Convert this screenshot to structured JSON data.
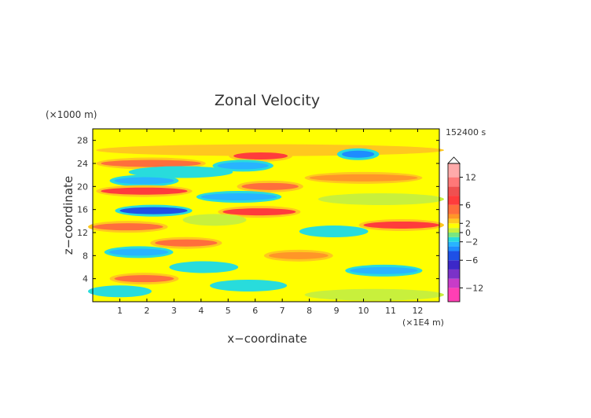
{
  "chart_data": {
    "type": "heatmap",
    "title": "Zonal Velocity",
    "xlabel": "x−coordinate",
    "ylabel": "z−coordinate",
    "x_unit": "(×1E4 m)",
    "y_unit": "(×1000 m)",
    "time_label": "152400 s",
    "xlim": [
      0,
      12.8
    ],
    "ylim": [
      0,
      30
    ],
    "x_ticks": [
      1,
      2,
      3,
      4,
      5,
      6,
      7,
      8,
      9,
      10,
      11,
      12
    ],
    "y_ticks": [
      4,
      8,
      12,
      16,
      20,
      24,
      28
    ],
    "colorbar": {
      "ticks": [
        12,
        6,
        2,
        0,
        -2,
        -6,
        -12
      ],
      "tick_labels": [
        "12",
        "6",
        "2",
        "0",
        "−2",
        "−6",
        "−12"
      ],
      "range": [
        -15,
        15
      ],
      "levels": [
        {
          "min": -15,
          "max": -12,
          "color": "#ff3fb4"
        },
        {
          "min": -12,
          "max": -10,
          "color": "#c83cc8"
        },
        {
          "min": -10,
          "max": -8,
          "color": "#7a32c8"
        },
        {
          "min": -8,
          "max": -6,
          "color": "#3c28c8"
        },
        {
          "min": -6,
          "max": -4,
          "color": "#1e50e6"
        },
        {
          "min": -4,
          "max": -3,
          "color": "#1e8cff"
        },
        {
          "min": -3,
          "max": -2,
          "color": "#28b4ff"
        },
        {
          "min": -2,
          "max": -1,
          "color": "#28dcdc"
        },
        {
          "min": -1,
          "max": 0,
          "color": "#78e682"
        },
        {
          "min": 0,
          "max": 1,
          "color": "#c8f03c"
        },
        {
          "min": 1,
          "max": 2,
          "color": "#ffff00"
        },
        {
          "min": 2,
          "max": 3,
          "color": "#ffc81e"
        },
        {
          "min": 3,
          "max": 4,
          "color": "#ff9628"
        },
        {
          "min": 4,
          "max": 6,
          "color": "#ff6e3c"
        },
        {
          "min": 6,
          "max": 8,
          "color": "#ff3c3c"
        },
        {
          "min": 8,
          "max": 10,
          "color": "#f05050"
        },
        {
          "min": 10,
          "max": 12,
          "color": "#ff7878"
        },
        {
          "min": 12,
          "max": 15,
          "color": "#ffaaaa"
        }
      ],
      "extend_top": true
    },
    "bands": [
      {
        "z": 26.3,
        "x0": 0.3,
        "x1": 12.8,
        "u": 2.5
      },
      {
        "z": 25.3,
        "x0": 5.2,
        "x1": 7.2,
        "u": 6.5
      },
      {
        "z": 25.6,
        "x0": 9.2,
        "x1": 10.4,
        "u": -3.5
      },
      {
        "z": 24.0,
        "x0": 0.3,
        "x1": 4.0,
        "u": 4.5
      },
      {
        "z": 23.6,
        "x0": 4.6,
        "x1": 6.5,
        "u": -2.5
      },
      {
        "z": 22.5,
        "x0": 1.5,
        "x1": 5.0,
        "u": -1.5
      },
      {
        "z": 21.5,
        "x0": 8.0,
        "x1": 12.0,
        "u": 3.5
      },
      {
        "z": 21.0,
        "x0": 0.8,
        "x1": 3.0,
        "u": -2.5
      },
      {
        "z": 20.0,
        "x0": 5.5,
        "x1": 7.6,
        "u": 5.0
      },
      {
        "z": 19.2,
        "x0": 0.3,
        "x1": 3.5,
        "u": 6.5
      },
      {
        "z": 18.2,
        "x0": 4.0,
        "x1": 6.8,
        "u": -2.5
      },
      {
        "z": 17.8,
        "x0": 8.5,
        "x1": 12.8,
        "u": 0.5
      },
      {
        "z": 15.8,
        "x0": 1.0,
        "x1": 3.5,
        "u": -4.5
      },
      {
        "z": 15.6,
        "x0": 4.8,
        "x1": 7.5,
        "u": 6.0
      },
      {
        "z": 14.2,
        "x0": 3.5,
        "x1": 5.5,
        "u": 0.5
      },
      {
        "z": 13.0,
        "x0": 0.0,
        "x1": 2.6,
        "u": 4.5
      },
      {
        "z": 13.3,
        "x0": 10.0,
        "x1": 12.8,
        "u": 6.0
      },
      {
        "z": 12.2,
        "x0": 7.8,
        "x1": 10.0,
        "u": -1.5
      },
      {
        "z": 10.2,
        "x0": 2.3,
        "x1": 4.6,
        "u": 4.5
      },
      {
        "z": 8.6,
        "x0": 0.6,
        "x1": 2.8,
        "u": -2.5
      },
      {
        "z": 8.0,
        "x0": 6.5,
        "x1": 8.7,
        "u": 3.5
      },
      {
        "z": 6.0,
        "x0": 3.0,
        "x1": 5.2,
        "u": -1.5
      },
      {
        "z": 5.4,
        "x0": 9.5,
        "x1": 12.0,
        "u": -2.5
      },
      {
        "z": 4.0,
        "x0": 0.8,
        "x1": 3.0,
        "u": 4.0
      },
      {
        "z": 2.8,
        "x0": 4.5,
        "x1": 7.0,
        "u": -1.5
      },
      {
        "z": 1.8,
        "x0": 0.0,
        "x1": 2.0,
        "u": -1.5
      },
      {
        "z": 1.2,
        "x0": 8.0,
        "x1": 12.8,
        "u": 0.5
      }
    ]
  }
}
